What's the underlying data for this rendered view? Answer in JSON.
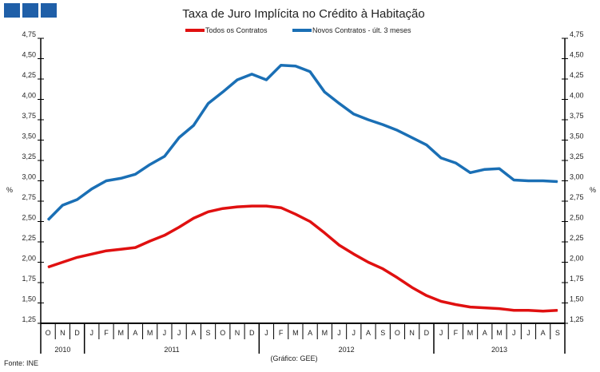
{
  "chart_data": {
    "type": "line",
    "title": "Taxa de Juro Implícita no Crédito à Habitação",
    "ylabel_left": "%",
    "ylabel_right": "%",
    "ylim": [
      1.25,
      4.75
    ],
    "yticks": [
      "1,25",
      "1,50",
      "1,75",
      "2,00",
      "2,25",
      "2,50",
      "2,75",
      "3,00",
      "3,25",
      "3,50",
      "3,75",
      "4,00",
      "4,25",
      "4,50",
      "4,75"
    ],
    "months": [
      "O",
      "N",
      "D",
      "J",
      "F",
      "M",
      "A",
      "M",
      "J",
      "J",
      "A",
      "S",
      "O",
      "N",
      "D",
      "J",
      "F",
      "M",
      "A",
      "M",
      "J",
      "J",
      "A",
      "S",
      "O",
      "N",
      "D",
      "J",
      "F",
      "M",
      "A",
      "M",
      "J",
      "J",
      "A",
      "S"
    ],
    "years": [
      {
        "label": "2010",
        "count": 3
      },
      {
        "label": "2011",
        "count": 12
      },
      {
        "label": "2012",
        "count": 12
      },
      {
        "label": "2013",
        "count": 9
      }
    ],
    "grid": false,
    "legend_position": "top-center",
    "series": [
      {
        "name": "Todos os Contratos",
        "color": "#e01010",
        "values": [
          1.94,
          2.0,
          2.06,
          2.1,
          2.14,
          2.16,
          2.18,
          2.26,
          2.33,
          2.43,
          2.54,
          2.62,
          2.66,
          2.68,
          2.69,
          2.69,
          2.67,
          2.59,
          2.5,
          2.36,
          2.21,
          2.1,
          2.0,
          1.92,
          1.81,
          1.69,
          1.59,
          1.52,
          1.48,
          1.45,
          1.44,
          1.43,
          1.41,
          1.41,
          1.4,
          1.41
        ]
      },
      {
        "name": "Novos Contratos - últ. 3 meses",
        "color": "#1a6fb5",
        "values": [
          2.52,
          2.7,
          2.77,
          2.9,
          3.0,
          3.03,
          3.08,
          3.2,
          3.3,
          3.53,
          3.68,
          3.95,
          4.09,
          4.24,
          4.31,
          4.24,
          4.42,
          4.41,
          4.34,
          4.09,
          3.95,
          3.82,
          3.75,
          3.69,
          3.62,
          3.53,
          3.44,
          3.28,
          3.22,
          3.1,
          3.14,
          3.15,
          3.01,
          3.0,
          3.0,
          2.99
        ]
      }
    ]
  },
  "footer": {
    "source": "Fonte: INE",
    "credit": "(Gráfico: GEE)"
  }
}
